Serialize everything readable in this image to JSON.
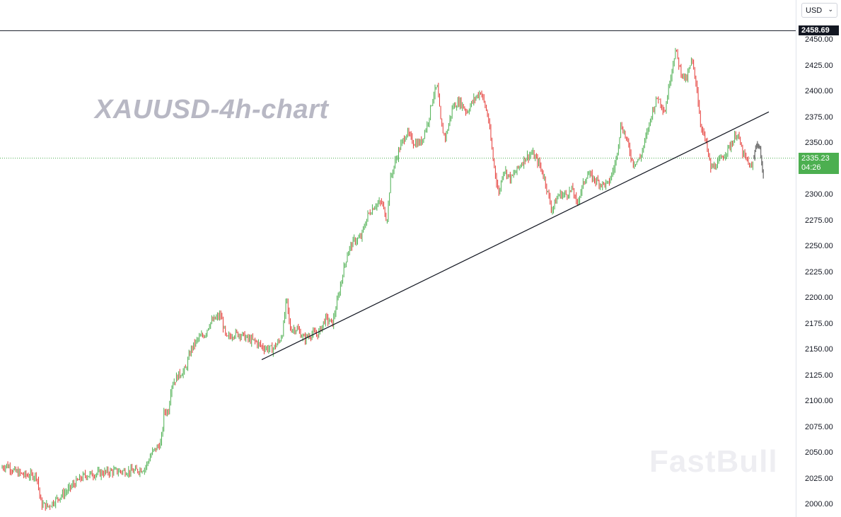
{
  "chart_data": {
    "type": "line",
    "title": "XAUUSD-4h-chart",
    "symbol": "XAUUSD",
    "timeframe": "4h",
    "currency": "USD",
    "ylim": [
      1993,
      2463
    ],
    "yticks": [
      "2450.00",
      "2425.00",
      "2400.00",
      "2375.00",
      "2350.00",
      "2325.00",
      "2300.00",
      "2275.00",
      "2250.00",
      "2225.00",
      "2200.00",
      "2175.00",
      "2150.00",
      "2125.00",
      "2100.00",
      "2075.00",
      "2050.00",
      "2025.00",
      "2000.00"
    ],
    "horizontal_level": {
      "value": 2458.69,
      "label": "2458.69"
    },
    "last_price": {
      "value": 2335.23,
      "label": "2335.23",
      "countdown": "04:26"
    },
    "trendline": {
      "start": 2140,
      "end": 2380
    },
    "n_bars": 660,
    "series": [
      {
        "anchors": [
          [
            0,
            2035
          ],
          [
            10,
            2038
          ],
          [
            20,
            2032
          ],
          [
            35,
            2028
          ],
          [
            52,
            2028
          ],
          [
            58,
            2000
          ],
          [
            68,
            1998
          ],
          [
            80,
            2005
          ],
          [
            95,
            2013
          ],
          [
            105,
            2020
          ],
          [
            120,
            2028
          ],
          [
            140,
            2030
          ],
          [
            160,
            2032
          ],
          [
            175,
            2032
          ],
          [
            190,
            2032
          ],
          [
            205,
            2035
          ],
          [
            215,
            2050
          ],
          [
            222,
            2055
          ],
          [
            228,
            2060
          ],
          [
            232,
            2090
          ],
          [
            238,
            2090
          ],
          [
            242,
            2115
          ],
          [
            252,
            2125
          ],
          [
            262,
            2130
          ],
          [
            270,
            2150
          ],
          [
            280,
            2160
          ],
          [
            290,
            2165
          ],
          [
            296,
            2175
          ],
          [
            305,
            2180
          ],
          [
            312,
            2183
          ],
          [
            320,
            2160
          ],
          [
            330,
            2165
          ],
          [
            340,
            2165
          ],
          [
            350,
            2160
          ],
          [
            360,
            2158
          ],
          [
            372,
            2152
          ],
          [
            385,
            2150
          ],
          [
            395,
            2158
          ],
          [
            400,
            2168
          ],
          [
            405,
            2200
          ],
          [
            410,
            2170
          ],
          [
            420,
            2170
          ],
          [
            430,
            2160
          ],
          [
            440,
            2165
          ],
          [
            450,
            2165
          ],
          [
            460,
            2180
          ],
          [
            470,
            2175
          ],
          [
            478,
            2200
          ],
          [
            485,
            2225
          ],
          [
            492,
            2245
          ],
          [
            500,
            2255
          ],
          [
            510,
            2258
          ],
          [
            520,
            2280
          ],
          [
            530,
            2290
          ],
          [
            540,
            2292
          ],
          [
            547,
            2275
          ],
          [
            552,
            2315
          ],
          [
            558,
            2330
          ],
          [
            565,
            2345
          ],
          [
            575,
            2360
          ],
          [
            585,
            2350
          ],
          [
            595,
            2350
          ],
          [
            605,
            2370
          ],
          [
            612,
            2395
          ],
          [
            618,
            2405
          ],
          [
            624,
            2365
          ],
          [
            630,
            2355
          ],
          [
            640,
            2385
          ],
          [
            650,
            2390
          ],
          [
            660,
            2380
          ],
          [
            670,
            2392
          ],
          [
            680,
            2400
          ],
          [
            690,
            2375
          ],
          [
            697,
            2335
          ],
          [
            705,
            2300
          ],
          [
            712,
            2325
          ],
          [
            722,
            2315
          ],
          [
            732,
            2325
          ],
          [
            742,
            2335
          ],
          [
            752,
            2340
          ],
          [
            762,
            2330
          ],
          [
            770,
            2315
          ],
          [
            780,
            2285
          ],
          [
            790,
            2300
          ],
          [
            800,
            2300
          ],
          [
            810,
            2305
          ],
          [
            815,
            2290
          ],
          [
            822,
            2305
          ],
          [
            830,
            2320
          ],
          [
            840,
            2315
          ],
          [
            850,
            2310
          ],
          [
            860,
            2310
          ],
          [
            870,
            2330
          ],
          [
            878,
            2368
          ],
          [
            885,
            2355
          ],
          [
            895,
            2330
          ],
          [
            905,
            2335
          ],
          [
            915,
            2360
          ],
          [
            922,
            2380
          ],
          [
            930,
            2395
          ],
          [
            940,
            2380
          ],
          [
            948,
            2415
          ],
          [
            955,
            2440
          ],
          [
            962,
            2420
          ],
          [
            970,
            2410
          ],
          [
            978,
            2430
          ],
          [
            985,
            2405
          ],
          [
            990,
            2370
          ],
          [
            998,
            2350
          ],
          [
            1005,
            2325
          ],
          [
            1015,
            2330
          ],
          [
            1025,
            2340
          ],
          [
            1035,
            2350
          ],
          [
            1042,
            2360
          ],
          [
            1050,
            2340
          ],
          [
            1058,
            2330
          ],
          [
            1063,
            2325
          ],
          [
            1066,
            2335
          ]
        ]
      }
    ]
  },
  "price_axis": {
    "currency_label": "USD",
    "currency_chevron": "chevron-down"
  },
  "watermark": {
    "text": "FastBull"
  },
  "colors": {
    "up": "#4caf50",
    "down": "#e53935",
    "projection": "#7a7a7a",
    "last_price_bg": "#4caf50",
    "level_bg": "#131722"
  },
  "projection": {
    "anchors": [
      [
        1066,
        2335
      ],
      [
        1068,
        2348
      ],
      [
        1072,
        2348
      ],
      [
        1076,
        2338
      ],
      [
        1078,
        2322
      ],
      [
        1080,
        2312
      ]
    ]
  }
}
